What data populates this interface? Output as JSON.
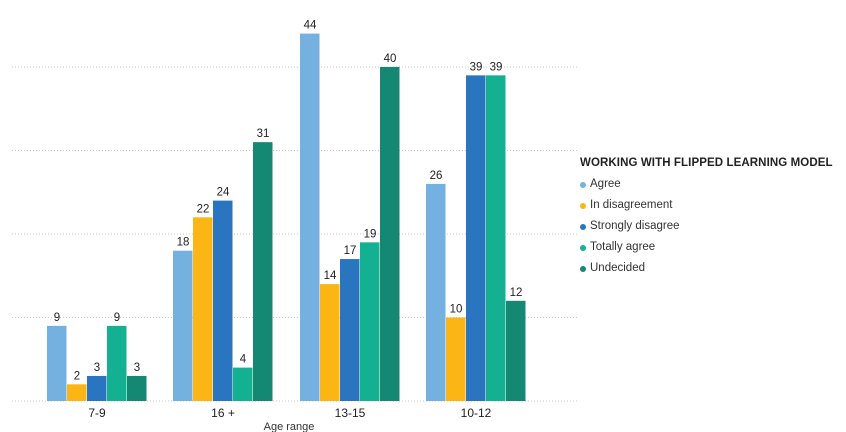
{
  "chart_data": {
    "type": "bar",
    "categories": [
      "7-9",
      "16 +",
      "13-15",
      "10-12"
    ],
    "series": [
      {
        "name": "Agree",
        "color": "#74b0e0",
        "values": [
          9,
          18,
          44,
          26
        ]
      },
      {
        "name": "In disagreement",
        "color": "#fbb616",
        "values": [
          2,
          22,
          14,
          10
        ]
      },
      {
        "name": "Strongly disagree",
        "color": "#2a75bf",
        "values": [
          3,
          24,
          17,
          39
        ]
      },
      {
        "name": "Totally agree",
        "color": "#14b092",
        "values": [
          9,
          4,
          19,
          39
        ]
      },
      {
        "name": "Undecided",
        "color": "#148873",
        "values": [
          3,
          31,
          40,
          12
        ]
      }
    ],
    "xlabel": "Age range",
    "ylabel": "",
    "ylim": [
      0,
      45
    ],
    "grid": true,
    "legend": {
      "title": "WORKING WITH FLIPPED LEARNING MODEL",
      "placement": "right"
    }
  }
}
